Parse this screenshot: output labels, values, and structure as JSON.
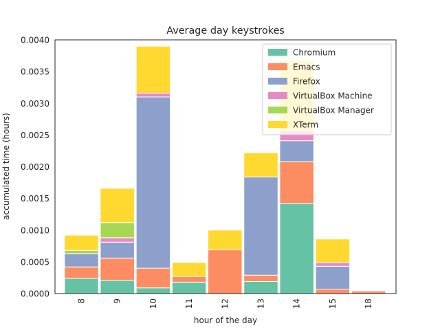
{
  "chart_data": {
    "type": "bar",
    "stacked": true,
    "title": "Average day keystrokes",
    "xlabel": "hour of the day",
    "ylabel": "accumulated time (hours)",
    "categories": [
      "8",
      "9",
      "10",
      "11",
      "12",
      "13",
      "14",
      "15",
      "18"
    ],
    "ylim": [
      0,
      0.004
    ],
    "yticks": [
      "0.0000",
      "0.0005",
      "0.0010",
      "0.0015",
      "0.0020",
      "0.0025",
      "0.0030",
      "0.0035",
      "0.0040"
    ],
    "grid": false,
    "legend_position": "top-right",
    "series": [
      {
        "name": "Chromium",
        "color": "#66c2a5",
        "values": [
          0.00024,
          0.00021,
          9e-05,
          0.00018,
          0.0,
          0.00019,
          0.00142,
          0.0,
          0.0
        ]
      },
      {
        "name": "Emacs",
        "color": "#fc8d62",
        "values": [
          0.00018,
          0.00035,
          0.00031,
          9e-05,
          0.00069,
          0.0001,
          0.00066,
          7e-05,
          4e-05
        ]
      },
      {
        "name": "Firefox",
        "color": "#8da0cb",
        "values": [
          0.00021,
          0.00025,
          0.0027,
          0.0,
          0.0,
          0.00155,
          0.00033,
          0.00036,
          0.0
        ]
      },
      {
        "name": "VirtualBox Machine",
        "color": "#e78ac3",
        "values": [
          0.0,
          7e-05,
          6e-05,
          0.0,
          0.0,
          0.0,
          0.00016,
          6e-05,
          0.0
        ]
      },
      {
        "name": "VirtualBox Manager",
        "color": "#a6d854",
        "values": [
          5e-05,
          0.00024,
          0.0,
          0.0,
          0.0,
          0.0,
          0.0,
          0.0,
          0.0
        ]
      },
      {
        "name": "XTerm",
        "color": "#ffd92f",
        "values": [
          0.00024,
          0.00054,
          0.00074,
          0.00022,
          0.00031,
          0.00038,
          0.0011,
          0.00037,
          0.0
        ]
      }
    ]
  }
}
